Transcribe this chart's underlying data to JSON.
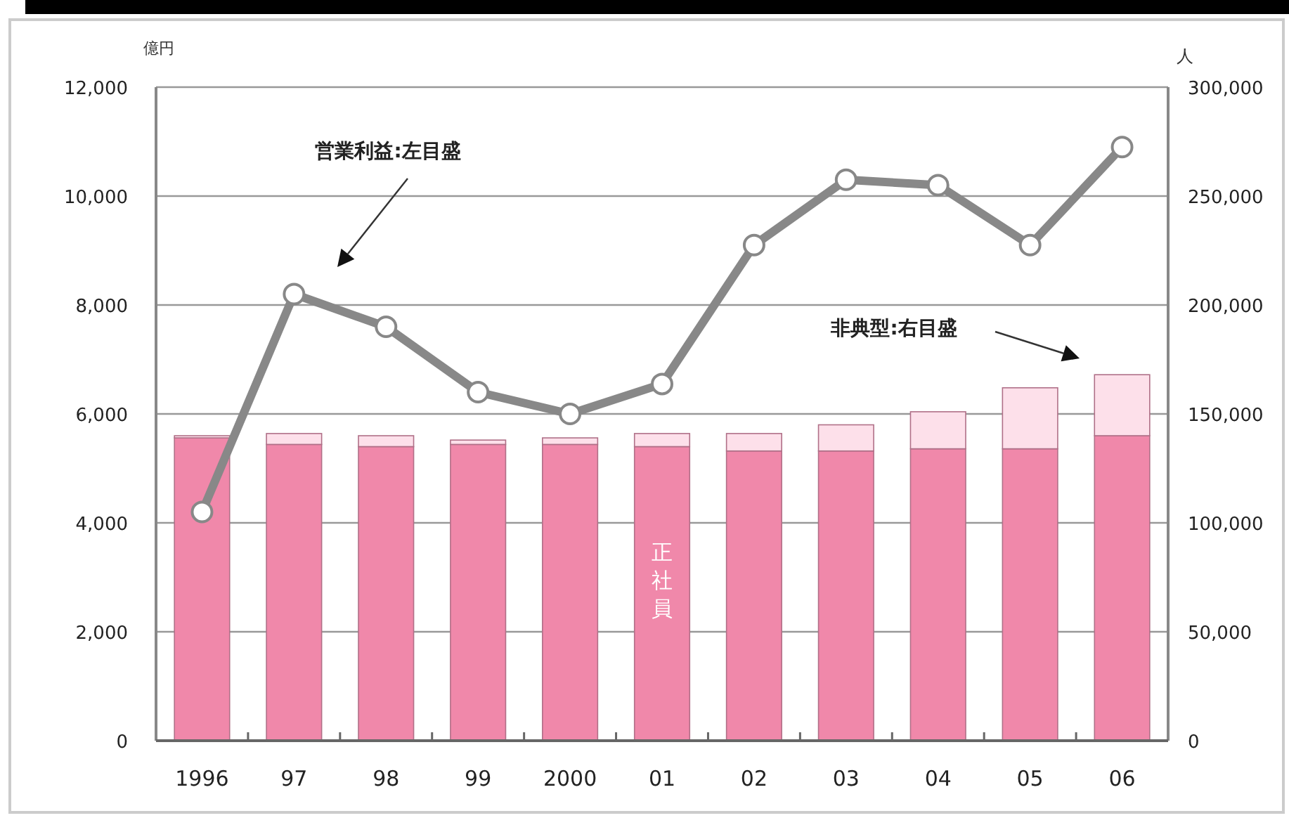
{
  "chart_data": {
    "type": "bar",
    "stacked": true,
    "grid": "y",
    "ylabel": "億円",
    "y2label": "人",
    "categories": [
      "1996",
      "97",
      "98",
      "99",
      "2000",
      "01",
      "02",
      "03",
      "04",
      "05",
      "06"
    ],
    "ylim": [
      0,
      12000
    ],
    "yticks": [
      {
        "value": 0,
        "label": "0"
      },
      {
        "value": 2000,
        "label": "2,000"
      },
      {
        "value": 4000,
        "label": "4,000"
      },
      {
        "value": 6000,
        "label": "6,000"
      },
      {
        "value": 8000,
        "label": "8,000"
      },
      {
        "value": 10000,
        "label": "10,000"
      },
      {
        "value": 12000,
        "label": "12,000"
      }
    ],
    "y2lim": [
      0,
      300000
    ],
    "y2ticks": [
      {
        "value": 0,
        "label": "0"
      },
      {
        "value": 50000,
        "label": "50,000"
      },
      {
        "value": 100000,
        "label": "100,000"
      },
      {
        "value": 150000,
        "label": "150,000"
      },
      {
        "value": 200000,
        "label": "200,000"
      },
      {
        "value": 250000,
        "label": "250,000"
      },
      {
        "value": 300000,
        "label": "300,000"
      }
    ],
    "series": [
      {
        "name": "正社員",
        "color": "#f088aa",
        "axis": "y2",
        "values": [
          139000,
          136000,
          135000,
          136000,
          136000,
          135000,
          133000,
          133000,
          134000,
          134000,
          140000
        ]
      },
      {
        "color": "#fde0ea",
        "axis": "y2",
        "values": [
          1000,
          5000,
          5000,
          2000,
          3000,
          6000,
          8000,
          12000,
          17000,
          28000,
          28000
        ]
      },
      {
        "type": "line",
        "color": "#888888",
        "marker": "circle",
        "values": [
          4200,
          8200,
          7600,
          6400,
          6000,
          6550,
          9100,
          10300,
          10200,
          9100,
          10900
        ]
      }
    ],
    "annotations": [
      "営業利益:左目盛",
      "非典型:右目盛"
    ]
  }
}
